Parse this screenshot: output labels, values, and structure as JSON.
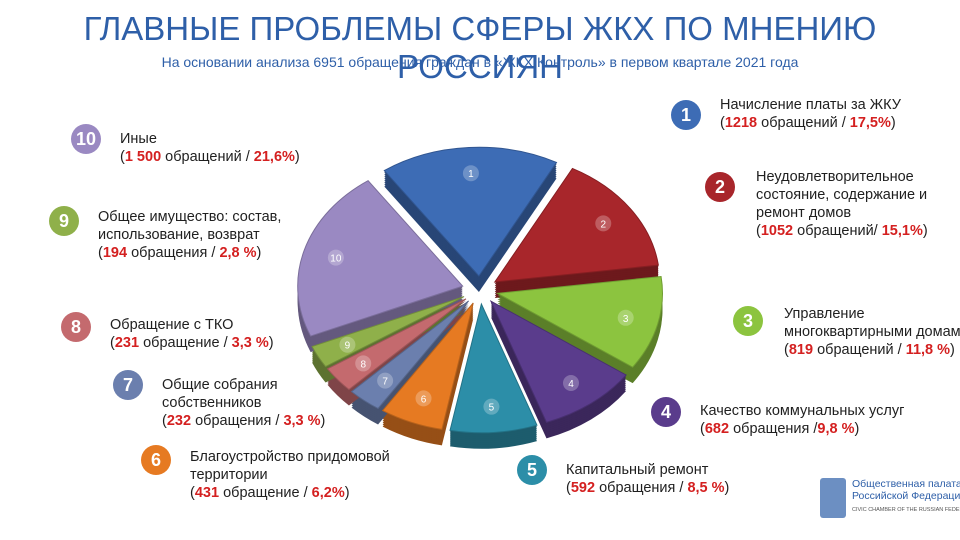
{
  "chart_data": {
    "type": "pie",
    "title": "ГЛАВНЫЕ ПРОБЛЕМЫ СФЕРЫ ЖКХ ПО МНЕНИЮ РОССИЯН",
    "subtitle": "На основании анализа 6951 обращения граждан в «ЖКХ Контроль» в первом квартале 2021 года",
    "categories": [
      "Начисление платы за ЖКУ",
      "Неудовлетворительное состояние, содержание и ремонт домов",
      "Управление многоквартирными домами",
      "Качество коммунальных услуг",
      "Капитальный ремонт",
      "Благоустройство придомовой территории",
      "Общие собрания собственников",
      "Обращение с ТКО",
      "Общее имущество: состав, использование, возврат",
      "Иные"
    ],
    "slice_labels": [
      "1",
      "2",
      "3",
      "4",
      "5",
      "6",
      "7",
      "8",
      "9",
      "10"
    ],
    "values": [
      17.5,
      15.1,
      11.8,
      9.8,
      8.5,
      6.2,
      3.3,
      3.3,
      2.8,
      21.6
    ],
    "value_labels": [
      "(1218 обращений / 17,5%)",
      "(1052 обращений/ 15,1%)",
      "(819 обращений / 11,8 %)",
      "(682 обращения /9,8 %)",
      "(592 обращения / 8,5 %)",
      "(431 обращение / 6,2%)",
      "(232 обращения / 3,3 %)",
      "(231 обращение / 3,3 %)",
      "(194 обращения / 2,8 %)",
      "(1 500 обращений / 21,6%)"
    ],
    "colors": [
      "#3d6cb5",
      "#a8262b",
      "#8cc43f",
      "#5a3c8c",
      "#2c8ea8",
      "#e67a22",
      "#6b7fae",
      "#c46a6e",
      "#8fb04a",
      "#9a89c2"
    ]
  },
  "logo": {
    "name": "Общественная палата Российской Федерации",
    "name_en": "CIVIC CHAMBER OF THE RUSSIAN FEDERATION"
  }
}
